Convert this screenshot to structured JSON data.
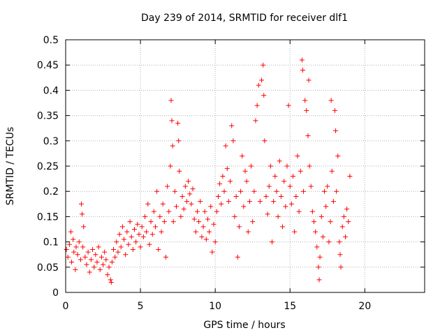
{
  "chart_data": {
    "type": "scatter",
    "title": "Day 239 of 2014, SRMTID for receiver dlf1",
    "xlabel": "GPS time / hours",
    "ylabel": "SRMTID / TECUs",
    "xlim": [
      0,
      24
    ],
    "ylim": [
      0,
      0.5
    ],
    "xticks": [
      0,
      5,
      10,
      15,
      20
    ],
    "yticks": [
      0,
      0.05,
      0.1,
      0.15,
      0.2,
      0.25,
      0.3,
      0.35,
      0.4,
      0.45,
      0.5
    ],
    "xtick_labels": [
      "0",
      "5",
      "10",
      "15",
      "20"
    ],
    "ytick_labels": [
      "0",
      "0.05",
      "0.1",
      "0.15",
      "0.2",
      "0.25",
      "0.3",
      "0.35",
      "0.4",
      "0.45",
      "0.5"
    ],
    "grid": true,
    "marker": "+",
    "color": "#ff0000",
    "series": [
      {
        "name": "SRMTID",
        "points": [
          [
            0.05,
            0.085
          ],
          [
            0.15,
            0.07
          ],
          [
            0.25,
            0.095
          ],
          [
            0.35,
            0.12
          ],
          [
            0.4,
            0.06
          ],
          [
            0.5,
            0.105
          ],
          [
            0.55,
            0.08
          ],
          [
            0.65,
            0.045
          ],
          [
            0.7,
            0.09
          ],
          [
            0.8,
            0.075
          ],
          [
            0.9,
            0.1
          ],
          [
            1.0,
            0.065
          ],
          [
            1.05,
            0.175
          ],
          [
            1.1,
            0.155
          ],
          [
            1.15,
            0.09
          ],
          [
            1.2,
            0.13
          ],
          [
            1.3,
            0.07
          ],
          [
            1.4,
            0.055
          ],
          [
            1.5,
            0.08
          ],
          [
            1.6,
            0.04
          ],
          [
            1.7,
            0.065
          ],
          [
            1.8,
            0.085
          ],
          [
            1.9,
            0.05
          ],
          [
            2.0,
            0.075
          ],
          [
            2.1,
            0.06
          ],
          [
            2.2,
            0.09
          ],
          [
            2.3,
            0.045
          ],
          [
            2.4,
            0.07
          ],
          [
            2.5,
            0.055
          ],
          [
            2.6,
            0.08
          ],
          [
            2.7,
            0.065
          ],
          [
            2.8,
            0.035
          ],
          [
            2.9,
            0.05
          ],
          [
            3.0,
            0.025
          ],
          [
            3.05,
            0.02
          ],
          [
            3.1,
            0.06
          ],
          [
            3.2,
            0.085
          ],
          [
            3.3,
            0.07
          ],
          [
            3.4,
            0.1
          ],
          [
            3.5,
            0.08
          ],
          [
            3.6,
            0.115
          ],
          [
            3.7,
            0.09
          ],
          [
            3.8,
            0.13
          ],
          [
            3.9,
            0.105
          ],
          [
            4.0,
            0.075
          ],
          [
            4.1,
            0.12
          ],
          [
            4.2,
            0.095
          ],
          [
            4.3,
            0.14
          ],
          [
            4.4,
            0.11
          ],
          [
            4.5,
            0.085
          ],
          [
            4.6,
            0.125
          ],
          [
            4.7,
            0.1
          ],
          [
            4.8,
            0.135
          ],
          [
            4.9,
            0.115
          ],
          [
            5.0,
            0.09
          ],
          [
            5.1,
            0.13
          ],
          [
            5.2,
            0.11
          ],
          [
            5.3,
            0.15
          ],
          [
            5.4,
            0.12
          ],
          [
            5.5,
            0.175
          ],
          [
            5.6,
            0.095
          ],
          [
            5.7,
            0.14
          ],
          [
            5.8,
            0.115
          ],
          [
            5.9,
            0.16
          ],
          [
            6.0,
            0.13
          ],
          [
            6.1,
            0.2
          ],
          [
            6.2,
            0.085
          ],
          [
            6.3,
            0.15
          ],
          [
            6.4,
            0.12
          ],
          [
            6.5,
            0.175
          ],
          [
            6.6,
            0.14
          ],
          [
            6.7,
            0.07
          ],
          [
            6.8,
            0.21
          ],
          [
            6.9,
            0.16
          ],
          [
            7.0,
            0.25
          ],
          [
            7.05,
            0.38
          ],
          [
            7.1,
            0.34
          ],
          [
            7.15,
            0.29
          ],
          [
            7.2,
            0.14
          ],
          [
            7.3,
            0.2
          ],
          [
            7.4,
            0.17
          ],
          [
            7.5,
            0.335
          ],
          [
            7.55,
            0.3
          ],
          [
            7.6,
            0.24
          ],
          [
            7.7,
            0.15
          ],
          [
            7.8,
            0.19
          ],
          [
            7.9,
            0.165
          ],
          [
            8.0,
            0.21
          ],
          [
            8.1,
            0.18
          ],
          [
            8.2,
            0.22
          ],
          [
            8.3,
            0.195
          ],
          [
            8.4,
            0.175
          ],
          [
            8.5,
            0.205
          ],
          [
            8.6,
            0.145
          ],
          [
            8.7,
            0.12
          ],
          [
            8.8,
            0.16
          ],
          [
            8.9,
            0.14
          ],
          [
            9.0,
            0.18
          ],
          [
            9.1,
            0.11
          ],
          [
            9.2,
            0.13
          ],
          [
            9.3,
            0.16
          ],
          [
            9.4,
            0.105
          ],
          [
            9.5,
            0.145
          ],
          [
            9.6,
            0.12
          ],
          [
            9.7,
            0.17
          ],
          [
            9.8,
            0.08
          ],
          [
            9.9,
            0.135
          ],
          [
            10.0,
            0.1
          ],
          [
            10.1,
            0.16
          ],
          [
            10.2,
            0.19
          ],
          [
            10.3,
            0.215
          ],
          [
            10.4,
            0.175
          ],
          [
            10.5,
            0.23
          ],
          [
            10.6,
            0.2
          ],
          [
            10.7,
            0.29
          ],
          [
            10.8,
            0.245
          ],
          [
            10.9,
            0.18
          ],
          [
            11.0,
            0.22
          ],
          [
            11.1,
            0.33
          ],
          [
            11.2,
            0.3
          ],
          [
            11.3,
            0.15
          ],
          [
            11.4,
            0.19
          ],
          [
            11.5,
            0.07
          ],
          [
            11.6,
            0.13
          ],
          [
            11.7,
            0.2
          ],
          [
            11.8,
            0.27
          ],
          [
            11.9,
            0.17
          ],
          [
            12.0,
            0.24
          ],
          [
            12.1,
            0.22
          ],
          [
            12.2,
            0.12
          ],
          [
            12.3,
            0.18
          ],
          [
            12.4,
            0.25
          ],
          [
            12.5,
            0.14
          ],
          [
            12.6,
            0.2
          ],
          [
            12.7,
            0.34
          ],
          [
            12.8,
            0.37
          ],
          [
            12.9,
            0.41
          ],
          [
            13.0,
            0.18
          ],
          [
            13.1,
            0.42
          ],
          [
            13.2,
            0.45
          ],
          [
            13.25,
            0.39
          ],
          [
            13.3,
            0.3
          ],
          [
            13.4,
            0.19
          ],
          [
            13.5,
            0.155
          ],
          [
            13.6,
            0.21
          ],
          [
            13.7,
            0.25
          ],
          [
            13.8,
            0.1
          ],
          [
            13.9,
            0.18
          ],
          [
            14.0,
            0.23
          ],
          [
            14.1,
            0.2
          ],
          [
            14.2,
            0.15
          ],
          [
            14.3,
            0.26
          ],
          [
            14.4,
            0.19
          ],
          [
            14.5,
            0.13
          ],
          [
            14.6,
            0.22
          ],
          [
            14.7,
            0.17
          ],
          [
            14.8,
            0.25
          ],
          [
            14.9,
            0.37
          ],
          [
            15.0,
            0.21
          ],
          [
            15.1,
            0.175
          ],
          [
            15.2,
            0.23
          ],
          [
            15.3,
            0.12
          ],
          [
            15.4,
            0.19
          ],
          [
            15.5,
            0.27
          ],
          [
            15.6,
            0.16
          ],
          [
            15.7,
            0.24
          ],
          [
            15.8,
            0.46
          ],
          [
            15.85,
            0.44
          ],
          [
            15.9,
            0.2
          ],
          [
            16.0,
            0.38
          ],
          [
            16.1,
            0.36
          ],
          [
            16.2,
            0.31
          ],
          [
            16.25,
            0.42
          ],
          [
            16.3,
            0.25
          ],
          [
            16.4,
            0.21
          ],
          [
            16.5,
            0.16
          ],
          [
            16.6,
            0.14
          ],
          [
            16.7,
            0.12
          ],
          [
            16.8,
            0.09
          ],
          [
            16.9,
            0.05
          ],
          [
            16.95,
            0.025
          ],
          [
            17.0,
            0.07
          ],
          [
            17.1,
            0.15
          ],
          [
            17.2,
            0.11
          ],
          [
            17.3,
            0.2
          ],
          [
            17.4,
            0.17
          ],
          [
            17.5,
            0.21
          ],
          [
            17.6,
            0.1
          ],
          [
            17.7,
            0.14
          ],
          [
            17.75,
            0.38
          ],
          [
            17.8,
            0.24
          ],
          [
            17.9,
            0.18
          ],
          [
            18.0,
            0.36
          ],
          [
            18.05,
            0.32
          ],
          [
            18.1,
            0.2
          ],
          [
            18.2,
            0.27
          ],
          [
            18.3,
            0.1
          ],
          [
            18.35,
            0.075
          ],
          [
            18.4,
            0.05
          ],
          [
            18.5,
            0.13
          ],
          [
            18.6,
            0.15
          ],
          [
            18.7,
            0.11
          ],
          [
            18.8,
            0.165
          ],
          [
            18.9,
            0.14
          ],
          [
            19.0,
            0.23
          ]
        ]
      }
    ]
  }
}
